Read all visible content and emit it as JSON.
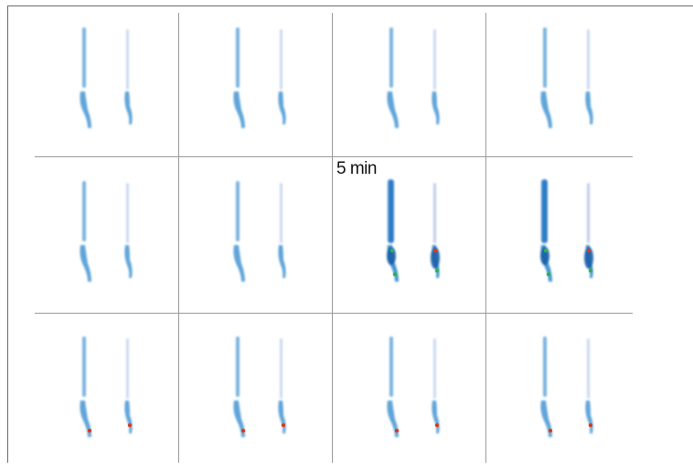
{
  "figure": {
    "time_label": "5 min",
    "grid": {
      "rows": 3,
      "cols": 4
    },
    "panels": [
      {
        "row": 1,
        "col": 1,
        "intensity": "low"
      },
      {
        "row": 1,
        "col": 2,
        "intensity": "low"
      },
      {
        "row": 1,
        "col": 3,
        "intensity": "low"
      },
      {
        "row": 1,
        "col": 4,
        "intensity": "low"
      },
      {
        "row": 2,
        "col": 1,
        "intensity": "low"
      },
      {
        "row": 2,
        "col": 2,
        "intensity": "low"
      },
      {
        "row": 2,
        "col": 3,
        "intensity": "high"
      },
      {
        "row": 2,
        "col": 4,
        "intensity": "high"
      },
      {
        "row": 3,
        "col": 1,
        "intensity": "medium"
      },
      {
        "row": 3,
        "col": 2,
        "intensity": "medium"
      },
      {
        "row": 3,
        "col": 3,
        "intensity": "medium"
      },
      {
        "row": 3,
        "col": 4,
        "intensity": "medium"
      }
    ],
    "colors": {
      "signal_low": "#3a8fd0",
      "signal_faint": "#b7c8ea",
      "hotspot_green": "#2db34a",
      "hotspot_red": "#d93a1c",
      "divider": "#9a9a9a"
    }
  }
}
